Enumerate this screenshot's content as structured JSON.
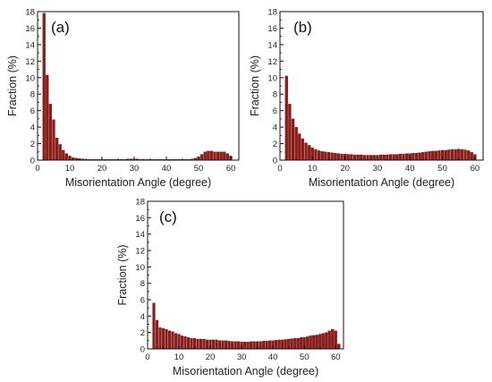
{
  "colors": {
    "bar": "#8f1c18",
    "bar_edge": "#5a0e0c",
    "axis": "#111111"
  },
  "chart_data": [
    {
      "type": "bar",
      "panel_label": "(a)",
      "xlabel": "Misorientation Angle (degree)",
      "ylabel": "Fraction (%)",
      "xlim": [
        0,
        62.5
      ],
      "ylim": [
        0,
        18
      ],
      "x_ticks": [
        0,
        10,
        20,
        30,
        40,
        50,
        60
      ],
      "y_ticks": [
        0,
        2,
        4,
        6,
        8,
        10,
        12,
        14,
        16,
        18
      ],
      "grid": false,
      "x": [
        2,
        3,
        4,
        5,
        6,
        7,
        8,
        9,
        10,
        11,
        12,
        13,
        14,
        15,
        16,
        17,
        18,
        19,
        20,
        21,
        22,
        23,
        24,
        25,
        26,
        27,
        28,
        29,
        30,
        31,
        32,
        33,
        34,
        35,
        36,
        37,
        38,
        39,
        40,
        41,
        42,
        43,
        44,
        45,
        46,
        47,
        48,
        49,
        50,
        51,
        52,
        53,
        54,
        55,
        56,
        57,
        58,
        59,
        60
      ],
      "values": [
        17.8,
        10.3,
        6.8,
        4.9,
        2.7,
        1.9,
        1.2,
        0.8,
        0.5,
        0.3,
        0.25,
        0.2,
        0.15,
        0.1,
        0.1,
        0.1,
        0.1,
        0.1,
        0.1,
        0.1,
        0.1,
        0.1,
        0.1,
        0.1,
        0.1,
        0.1,
        0.15,
        0.15,
        0.15,
        0.15,
        0.1,
        0.1,
        0.1,
        0.1,
        0.1,
        0.1,
        0.1,
        0.1,
        0.1,
        0.1,
        0.1,
        0.1,
        0.1,
        0.1,
        0.1,
        0.1,
        0.15,
        0.25,
        0.4,
        0.7,
        1.0,
        1.1,
        1.1,
        1.0,
        1.0,
        1.0,
        1.0,
        0.8,
        0.5
      ]
    },
    {
      "type": "bar",
      "panel_label": "(b)",
      "xlabel": "Misorientation Angle (degree)",
      "ylabel": "Fraction (%)",
      "xlim": [
        0,
        62.5
      ],
      "ylim": [
        0,
        18
      ],
      "x_ticks": [
        0,
        10,
        20,
        30,
        40,
        50,
        60
      ],
      "y_ticks": [
        0,
        2,
        4,
        6,
        8,
        10,
        12,
        14,
        16,
        18
      ],
      "grid": false,
      "x": [
        2,
        3,
        4,
        5,
        6,
        7,
        8,
        9,
        10,
        11,
        12,
        13,
        14,
        15,
        16,
        17,
        18,
        19,
        20,
        21,
        22,
        23,
        24,
        25,
        26,
        27,
        28,
        29,
        30,
        31,
        32,
        33,
        34,
        35,
        36,
        37,
        38,
        39,
        40,
        41,
        42,
        43,
        44,
        45,
        46,
        47,
        48,
        49,
        50,
        51,
        52,
        53,
        54,
        55,
        56,
        57,
        58,
        59,
        60
      ],
      "values": [
        10.2,
        6.8,
        5.0,
        4.0,
        3.2,
        2.6,
        2.1,
        1.8,
        1.5,
        1.3,
        1.15,
        1.05,
        1.0,
        0.95,
        0.9,
        0.85,
        0.8,
        0.75,
        0.75,
        0.7,
        0.7,
        0.65,
        0.65,
        0.65,
        0.6,
        0.6,
        0.6,
        0.6,
        0.6,
        0.65,
        0.65,
        0.65,
        0.7,
        0.7,
        0.7,
        0.75,
        0.75,
        0.8,
        0.8,
        0.85,
        0.85,
        0.9,
        0.95,
        1.0,
        1.05,
        1.1,
        1.1,
        1.15,
        1.2,
        1.2,
        1.25,
        1.3,
        1.3,
        1.35,
        1.3,
        1.25,
        1.15,
        0.95,
        0.7
      ]
    },
    {
      "type": "bar",
      "panel_label": "(c)",
      "xlabel": "Misorientation Angle (degree)",
      "ylabel": "Fraction (%)",
      "xlim": [
        0,
        62.5
      ],
      "ylim": [
        0,
        18
      ],
      "x_ticks": [
        0,
        10,
        20,
        30,
        40,
        50,
        60
      ],
      "y_ticks": [
        0,
        2,
        4,
        6,
        8,
        10,
        12,
        14,
        16,
        18
      ],
      "grid": false,
      "x": [
        2,
        3,
        4,
        5,
        6,
        7,
        8,
        9,
        10,
        11,
        12,
        13,
        14,
        15,
        16,
        17,
        18,
        19,
        20,
        21,
        22,
        23,
        24,
        25,
        26,
        27,
        28,
        29,
        30,
        31,
        32,
        33,
        34,
        35,
        36,
        37,
        38,
        39,
        40,
        41,
        42,
        43,
        44,
        45,
        46,
        47,
        48,
        49,
        50,
        51,
        52,
        53,
        54,
        55,
        56,
        57,
        58,
        59,
        60,
        61
      ],
      "values": [
        5.6,
        3.5,
        2.6,
        2.5,
        2.4,
        2.2,
        2.1,
        1.9,
        1.8,
        1.6,
        1.5,
        1.4,
        1.3,
        1.3,
        1.2,
        1.2,
        1.2,
        1.1,
        1.1,
        1.1,
        1.1,
        1.0,
        1.0,
        1.0,
        0.95,
        0.9,
        0.9,
        0.9,
        0.85,
        0.85,
        0.85,
        0.9,
        0.9,
        0.9,
        0.9,
        0.95,
        0.95,
        1.0,
        1.0,
        1.05,
        1.1,
        1.1,
        1.15,
        1.2,
        1.25,
        1.3,
        1.3,
        1.4,
        1.4,
        1.5,
        1.6,
        1.65,
        1.7,
        1.8,
        1.9,
        2.0,
        2.2,
        2.4,
        2.2,
        0.6
      ]
    }
  ]
}
